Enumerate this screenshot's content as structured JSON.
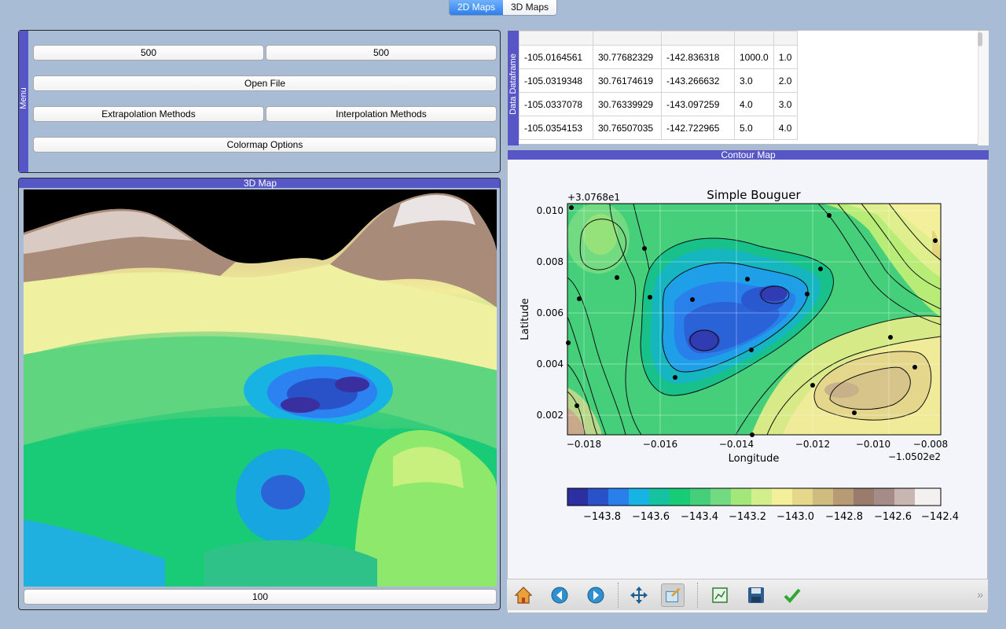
{
  "tabs": [
    {
      "label": "2D Maps",
      "active": true
    },
    {
      "label": "3D Maps",
      "active": false
    }
  ],
  "menu": {
    "strip_label": "Menu",
    "grid_x": "500",
    "grid_y": "500",
    "open_file": "Open File",
    "extrapolation": "Extrapolation Methods",
    "interpolation": "Interpolation Methods",
    "colormap": "Colormap Options"
  },
  "map3d": {
    "title": "3D Map",
    "value_field": "100"
  },
  "dataframe": {
    "strip_label": "Data Dataframe",
    "rows": [
      [
        "-105.0164561",
        "30.77682329",
        "-142.836318",
        "1000.0",
        "1.0"
      ],
      [
        "-105.0319348",
        "30.76174619",
        "-143.266632",
        "3.0",
        "2.0"
      ],
      [
        "-105.0337078",
        "30.76339929",
        "-143.097259",
        "4.0",
        "3.0"
      ],
      [
        "-105.0354153",
        "30.76507035",
        "-142.722965",
        "5.0",
        "4.0"
      ]
    ]
  },
  "contour": {
    "panel_title": "Contour Map",
    "plot_title": "Simple Bouguer",
    "xlabel": "Longitude",
    "ylabel": "Latitude",
    "x_offset": "−1.0502e2",
    "y_offset": "+3.0768e1",
    "x_ticks": [
      "−0.018",
      "−0.016",
      "−0.014",
      "−0.012",
      "−0.010",
      "−0.008"
    ],
    "y_ticks": [
      "0.010",
      "0.008",
      "0.006",
      "0.004",
      "0.002"
    ],
    "colorbar_ticks": [
      "−143.8",
      "−143.6",
      "−143.4",
      "−143.2",
      "−143.0",
      "−142.8",
      "−142.6",
      "−142.4"
    ]
  },
  "colors": {
    "strip": "#5656c6",
    "background": "#a9bcd6",
    "tab_active": "#2d7fe9"
  },
  "toolbar_icons": [
    "home-icon",
    "back-icon",
    "forward-icon",
    "pan-icon",
    "zoom-icon",
    "configure-subplots-icon",
    "save-icon",
    "check-icon"
  ]
}
